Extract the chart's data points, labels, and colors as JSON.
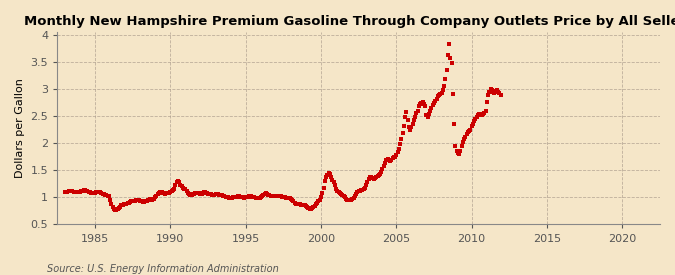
{
  "title": "Monthly New Hampshire Premium Gasoline Through Company Outlets Price by All Sellers",
  "ylabel": "Dollars per Gallon",
  "source": "Source: U.S. Energy Information Administration",
  "bg_color": "#f5e6c8",
  "marker_color": "#cc0000",
  "xlim": [
    1982.5,
    2022.5
  ],
  "ylim": [
    0.5,
    4.05
  ],
  "yticks": [
    0.5,
    1.0,
    1.5,
    2.0,
    2.5,
    3.0,
    3.5,
    4.0
  ],
  "xticks": [
    1985,
    1990,
    1995,
    2000,
    2005,
    2010,
    2015,
    2020
  ],
  "data": [
    [
      1983.0,
      1.09
    ],
    [
      1983.08,
      1.1
    ],
    [
      1983.17,
      1.1
    ],
    [
      1983.25,
      1.11
    ],
    [
      1983.33,
      1.11
    ],
    [
      1983.42,
      1.12
    ],
    [
      1983.5,
      1.11
    ],
    [
      1983.58,
      1.1
    ],
    [
      1983.67,
      1.1
    ],
    [
      1983.75,
      1.09
    ],
    [
      1983.83,
      1.09
    ],
    [
      1983.92,
      1.09
    ],
    [
      1984.0,
      1.1
    ],
    [
      1984.08,
      1.11
    ],
    [
      1984.17,
      1.12
    ],
    [
      1984.25,
      1.13
    ],
    [
      1984.33,
      1.13
    ],
    [
      1984.42,
      1.12
    ],
    [
      1984.5,
      1.11
    ],
    [
      1984.58,
      1.1
    ],
    [
      1984.67,
      1.09
    ],
    [
      1984.75,
      1.08
    ],
    [
      1984.83,
      1.08
    ],
    [
      1984.92,
      1.08
    ],
    [
      1985.0,
      1.08
    ],
    [
      1985.08,
      1.09
    ],
    [
      1985.17,
      1.09
    ],
    [
      1985.25,
      1.1
    ],
    [
      1985.33,
      1.09
    ],
    [
      1985.42,
      1.08
    ],
    [
      1985.5,
      1.07
    ],
    [
      1985.58,
      1.06
    ],
    [
      1985.67,
      1.05
    ],
    [
      1985.75,
      1.04
    ],
    [
      1985.83,
      1.03
    ],
    [
      1985.92,
      1.02
    ],
    [
      1986.0,
      0.95
    ],
    [
      1986.08,
      0.87
    ],
    [
      1986.17,
      0.82
    ],
    [
      1986.25,
      0.79
    ],
    [
      1986.33,
      0.77
    ],
    [
      1986.42,
      0.76
    ],
    [
      1986.5,
      0.79
    ],
    [
      1986.58,
      0.81
    ],
    [
      1986.67,
      0.83
    ],
    [
      1986.75,
      0.85
    ],
    [
      1986.83,
      0.86
    ],
    [
      1986.92,
      0.87
    ],
    [
      1987.0,
      0.88
    ],
    [
      1987.08,
      0.88
    ],
    [
      1987.17,
      0.89
    ],
    [
      1987.25,
      0.9
    ],
    [
      1987.33,
      0.92
    ],
    [
      1987.42,
      0.93
    ],
    [
      1987.5,
      0.93
    ],
    [
      1987.58,
      0.94
    ],
    [
      1987.67,
      0.94
    ],
    [
      1987.75,
      0.95
    ],
    [
      1987.83,
      0.95
    ],
    [
      1987.92,
      0.95
    ],
    [
      1988.0,
      0.94
    ],
    [
      1988.08,
      0.93
    ],
    [
      1988.17,
      0.92
    ],
    [
      1988.25,
      0.92
    ],
    [
      1988.33,
      0.93
    ],
    [
      1988.42,
      0.94
    ],
    [
      1988.5,
      0.95
    ],
    [
      1988.58,
      0.96
    ],
    [
      1988.67,
      0.97
    ],
    [
      1988.75,
      0.96
    ],
    [
      1988.83,
      0.97
    ],
    [
      1988.92,
      0.97
    ],
    [
      1989.0,
      1.0
    ],
    [
      1989.08,
      1.03
    ],
    [
      1989.17,
      1.06
    ],
    [
      1989.25,
      1.08
    ],
    [
      1989.33,
      1.09
    ],
    [
      1989.42,
      1.09
    ],
    [
      1989.5,
      1.08
    ],
    [
      1989.58,
      1.08
    ],
    [
      1989.67,
      1.07
    ],
    [
      1989.75,
      1.08
    ],
    [
      1989.83,
      1.08
    ],
    [
      1989.92,
      1.08
    ],
    [
      1990.0,
      1.09
    ],
    [
      1990.08,
      1.11
    ],
    [
      1990.17,
      1.13
    ],
    [
      1990.25,
      1.16
    ],
    [
      1990.33,
      1.22
    ],
    [
      1990.42,
      1.28
    ],
    [
      1990.5,
      1.3
    ],
    [
      1990.58,
      1.28
    ],
    [
      1990.67,
      1.23
    ],
    [
      1990.75,
      1.21
    ],
    [
      1990.83,
      1.18
    ],
    [
      1990.92,
      1.16
    ],
    [
      1991.0,
      1.15
    ],
    [
      1991.08,
      1.11
    ],
    [
      1991.17,
      1.08
    ],
    [
      1991.25,
      1.06
    ],
    [
      1991.33,
      1.05
    ],
    [
      1991.42,
      1.05
    ],
    [
      1991.5,
      1.06
    ],
    [
      1991.58,
      1.07
    ],
    [
      1991.67,
      1.08
    ],
    [
      1991.75,
      1.08
    ],
    [
      1991.83,
      1.08
    ],
    [
      1991.92,
      1.08
    ],
    [
      1992.0,
      1.07
    ],
    [
      1992.08,
      1.07
    ],
    [
      1992.17,
      1.08
    ],
    [
      1992.25,
      1.09
    ],
    [
      1992.33,
      1.09
    ],
    [
      1992.42,
      1.08
    ],
    [
      1992.5,
      1.07
    ],
    [
      1992.58,
      1.06
    ],
    [
      1992.67,
      1.06
    ],
    [
      1992.75,
      1.05
    ],
    [
      1992.83,
      1.05
    ],
    [
      1992.92,
      1.05
    ],
    [
      1993.0,
      1.06
    ],
    [
      1993.08,
      1.06
    ],
    [
      1993.17,
      1.06
    ],
    [
      1993.25,
      1.05
    ],
    [
      1993.33,
      1.04
    ],
    [
      1993.42,
      1.04
    ],
    [
      1993.5,
      1.03
    ],
    [
      1993.58,
      1.02
    ],
    [
      1993.67,
      1.01
    ],
    [
      1993.75,
      1.0
    ],
    [
      1993.83,
      1.0
    ],
    [
      1993.92,
      0.99
    ],
    [
      1994.0,
      0.99
    ],
    [
      1994.08,
      0.99
    ],
    [
      1994.17,
      1.0
    ],
    [
      1994.25,
      1.0
    ],
    [
      1994.33,
      1.01
    ],
    [
      1994.42,
      1.01
    ],
    [
      1994.5,
      1.02
    ],
    [
      1994.58,
      1.02
    ],
    [
      1994.67,
      1.01
    ],
    [
      1994.75,
      1.0
    ],
    [
      1994.83,
      1.0
    ],
    [
      1994.92,
      0.99
    ],
    [
      1995.0,
      1.0
    ],
    [
      1995.08,
      1.0
    ],
    [
      1995.17,
      1.01
    ],
    [
      1995.25,
      1.02
    ],
    [
      1995.33,
      1.02
    ],
    [
      1995.42,
      1.01
    ],
    [
      1995.5,
      1.0
    ],
    [
      1995.58,
      1.0
    ],
    [
      1995.67,
      0.99
    ],
    [
      1995.75,
      0.98
    ],
    [
      1995.83,
      0.98
    ],
    [
      1995.92,
      0.98
    ],
    [
      1996.0,
      1.0
    ],
    [
      1996.08,
      1.02
    ],
    [
      1996.17,
      1.05
    ],
    [
      1996.25,
      1.07
    ],
    [
      1996.33,
      1.08
    ],
    [
      1996.42,
      1.06
    ],
    [
      1996.5,
      1.05
    ],
    [
      1996.58,
      1.04
    ],
    [
      1996.67,
      1.03
    ],
    [
      1996.75,
      1.03
    ],
    [
      1996.83,
      1.03
    ],
    [
      1996.92,
      1.03
    ],
    [
      1997.0,
      1.03
    ],
    [
      1997.08,
      1.02
    ],
    [
      1997.17,
      1.02
    ],
    [
      1997.25,
      1.02
    ],
    [
      1997.33,
      1.02
    ],
    [
      1997.42,
      1.01
    ],
    [
      1997.5,
      1.0
    ],
    [
      1997.58,
      1.0
    ],
    [
      1997.67,
      0.99
    ],
    [
      1997.75,
      0.99
    ],
    [
      1997.83,
      0.99
    ],
    [
      1997.92,
      0.98
    ],
    [
      1998.0,
      0.97
    ],
    [
      1998.08,
      0.95
    ],
    [
      1998.17,
      0.93
    ],
    [
      1998.25,
      0.9
    ],
    [
      1998.33,
      0.88
    ],
    [
      1998.42,
      0.87
    ],
    [
      1998.5,
      0.87
    ],
    [
      1998.58,
      0.87
    ],
    [
      1998.67,
      0.86
    ],
    [
      1998.75,
      0.85
    ],
    [
      1998.83,
      0.85
    ],
    [
      1998.92,
      0.85
    ],
    [
      1999.0,
      0.84
    ],
    [
      1999.08,
      0.82
    ],
    [
      1999.17,
      0.8
    ],
    [
      1999.25,
      0.79
    ],
    [
      1999.33,
      0.79
    ],
    [
      1999.42,
      0.8
    ],
    [
      1999.5,
      0.82
    ],
    [
      1999.58,
      0.84
    ],
    [
      1999.67,
      0.87
    ],
    [
      1999.75,
      0.9
    ],
    [
      1999.83,
      0.93
    ],
    [
      1999.92,
      0.96
    ],
    [
      2000.0,
      1.0
    ],
    [
      2000.08,
      1.08
    ],
    [
      2000.17,
      1.18
    ],
    [
      2000.25,
      1.3
    ],
    [
      2000.33,
      1.38
    ],
    [
      2000.42,
      1.42
    ],
    [
      2000.5,
      1.44
    ],
    [
      2000.58,
      1.43
    ],
    [
      2000.67,
      1.38
    ],
    [
      2000.75,
      1.32
    ],
    [
      2000.83,
      1.28
    ],
    [
      2000.92,
      1.22
    ],
    [
      2001.0,
      1.16
    ],
    [
      2001.08,
      1.12
    ],
    [
      2001.17,
      1.1
    ],
    [
      2001.25,
      1.08
    ],
    [
      2001.33,
      1.06
    ],
    [
      2001.42,
      1.04
    ],
    [
      2001.5,
      1.02
    ],
    [
      2001.58,
      1.0
    ],
    [
      2001.67,
      0.97
    ],
    [
      2001.75,
      0.96
    ],
    [
      2001.83,
      0.96
    ],
    [
      2001.92,
      0.95
    ],
    [
      2002.0,
      0.96
    ],
    [
      2002.08,
      0.97
    ],
    [
      2002.17,
      0.99
    ],
    [
      2002.25,
      1.03
    ],
    [
      2002.33,
      1.06
    ],
    [
      2002.42,
      1.09
    ],
    [
      2002.5,
      1.11
    ],
    [
      2002.58,
      1.12
    ],
    [
      2002.67,
      1.13
    ],
    [
      2002.75,
      1.14
    ],
    [
      2002.83,
      1.15
    ],
    [
      2002.92,
      1.18
    ],
    [
      2003.0,
      1.22
    ],
    [
      2003.08,
      1.28
    ],
    [
      2003.17,
      1.34
    ],
    [
      2003.25,
      1.38
    ],
    [
      2003.33,
      1.38
    ],
    [
      2003.42,
      1.36
    ],
    [
      2003.5,
      1.34
    ],
    [
      2003.58,
      1.35
    ],
    [
      2003.67,
      1.37
    ],
    [
      2003.75,
      1.4
    ],
    [
      2003.83,
      1.42
    ],
    [
      2003.92,
      1.43
    ],
    [
      2004.0,
      1.47
    ],
    [
      2004.08,
      1.52
    ],
    [
      2004.17,
      1.58
    ],
    [
      2004.25,
      1.63
    ],
    [
      2004.33,
      1.68
    ],
    [
      2004.42,
      1.7
    ],
    [
      2004.5,
      1.68
    ],
    [
      2004.58,
      1.67
    ],
    [
      2004.67,
      1.68
    ],
    [
      2004.75,
      1.72
    ],
    [
      2004.83,
      1.75
    ],
    [
      2004.92,
      1.74
    ],
    [
      2005.0,
      1.78
    ],
    [
      2005.08,
      1.83
    ],
    [
      2005.17,
      1.9
    ],
    [
      2005.25,
      1.98
    ],
    [
      2005.33,
      2.08
    ],
    [
      2005.42,
      2.18
    ],
    [
      2005.5,
      2.32
    ],
    [
      2005.58,
      2.48
    ],
    [
      2005.67,
      2.58
    ],
    [
      2005.75,
      2.42
    ],
    [
      2005.83,
      2.3
    ],
    [
      2005.92,
      2.25
    ],
    [
      2006.0,
      2.3
    ],
    [
      2006.08,
      2.35
    ],
    [
      2006.17,
      2.42
    ],
    [
      2006.25,
      2.48
    ],
    [
      2006.33,
      2.55
    ],
    [
      2006.42,
      2.6
    ],
    [
      2006.5,
      2.68
    ],
    [
      2006.58,
      2.72
    ],
    [
      2006.67,
      2.74
    ],
    [
      2006.75,
      2.75
    ],
    [
      2006.83,
      2.72
    ],
    [
      2006.92,
      2.68
    ],
    [
      2007.0,
      2.52
    ],
    [
      2007.08,
      2.48
    ],
    [
      2007.17,
      2.54
    ],
    [
      2007.25,
      2.6
    ],
    [
      2007.33,
      2.65
    ],
    [
      2007.42,
      2.7
    ],
    [
      2007.5,
      2.74
    ],
    [
      2007.58,
      2.78
    ],
    [
      2007.67,
      2.82
    ],
    [
      2007.75,
      2.86
    ],
    [
      2007.83,
      2.88
    ],
    [
      2007.92,
      2.9
    ],
    [
      2008.0,
      2.92
    ],
    [
      2008.08,
      2.98
    ],
    [
      2008.17,
      3.05
    ],
    [
      2008.25,
      3.18
    ],
    [
      2008.33,
      3.35
    ],
    [
      2008.42,
      3.62
    ],
    [
      2008.5,
      3.82
    ],
    [
      2008.58,
      3.57
    ],
    [
      2008.67,
      3.48
    ],
    [
      2008.75,
      2.9
    ],
    [
      2008.83,
      2.35
    ],
    [
      2008.92,
      1.95
    ],
    [
      2009.0,
      1.85
    ],
    [
      2009.08,
      1.82
    ],
    [
      2009.17,
      1.8
    ],
    [
      2009.25,
      1.85
    ],
    [
      2009.33,
      1.95
    ],
    [
      2009.42,
      2.02
    ],
    [
      2009.5,
      2.08
    ],
    [
      2009.58,
      2.12
    ],
    [
      2009.67,
      2.16
    ],
    [
      2009.75,
      2.2
    ],
    [
      2009.83,
      2.22
    ],
    [
      2009.92,
      2.25
    ],
    [
      2010.0,
      2.32
    ],
    [
      2010.08,
      2.36
    ],
    [
      2010.17,
      2.4
    ],
    [
      2010.25,
      2.44
    ],
    [
      2010.33,
      2.48
    ],
    [
      2010.42,
      2.52
    ],
    [
      2010.5,
      2.53
    ],
    [
      2010.58,
      2.53
    ],
    [
      2010.67,
      2.52
    ],
    [
      2010.75,
      2.53
    ],
    [
      2010.83,
      2.55
    ],
    [
      2010.92,
      2.6
    ],
    [
      2011.0,
      2.75
    ],
    [
      2011.08,
      2.88
    ],
    [
      2011.17,
      2.95
    ],
    [
      2011.25,
      3.0
    ],
    [
      2011.33,
      2.98
    ],
    [
      2011.42,
      2.95
    ],
    [
      2011.5,
      2.93
    ],
    [
      2011.58,
      2.97
    ],
    [
      2011.67,
      2.98
    ],
    [
      2011.75,
      2.95
    ],
    [
      2011.83,
      2.92
    ],
    [
      2011.92,
      2.88
    ]
  ]
}
